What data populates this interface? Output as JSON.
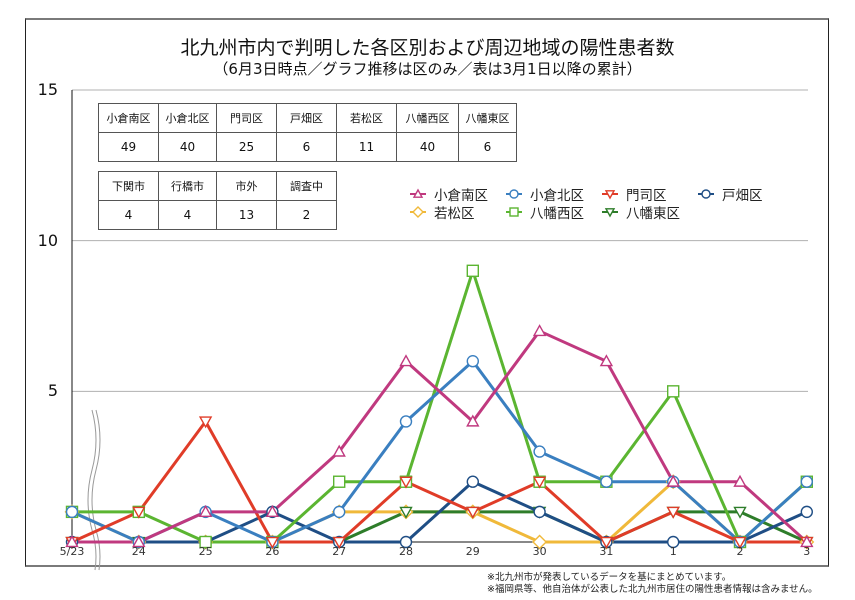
{
  "title": "北九州市内で判明した各区別および周辺地域の陽性患者数",
  "subtitle": "（6月3日時点／グラフ推移は区のみ／表は3月1日以降の累計）",
  "table_wards": {
    "headers": [
      "小倉南区",
      "小倉北区",
      "門司区",
      "戸畑区",
      "若松区",
      "八幡西区",
      "八幡東区"
    ],
    "values": [
      "49",
      "40",
      "25",
      "6",
      "11",
      "40",
      "6"
    ]
  },
  "table_others": {
    "headers": [
      "下関市",
      "行橋市",
      "市外",
      "調査中"
    ],
    "values": [
      "4",
      "4",
      "13",
      "2"
    ]
  },
  "notes": [
    "※北九州市が発表しているデータを基にまとめています。",
    "※福岡県等、他自治体が公表した北九州市居住の陽性患者情報は含みません。"
  ],
  "chart_data": {
    "type": "line",
    "title": "北九州市内で判明した各区別および周辺地域の陽性患者数",
    "subtitle": "（6月3日時点／グラフ推移は区のみ／表は3月1日以降の累計）",
    "xlabel": "",
    "ylabel": "",
    "x": [
      "5/23",
      "24",
      "25",
      "26",
      "27",
      "28",
      "29",
      "30",
      "31",
      "1",
      "2",
      "3"
    ],
    "ylim": [
      0,
      15
    ],
    "yticks": [
      "5",
      "10",
      "15"
    ],
    "grid": true,
    "legend_position": "upper-right-inside",
    "series": [
      {
        "name": "小倉南区",
        "color": "#c0397f",
        "marker": "triangle-up",
        "values": [
          0,
          0,
          1,
          1,
          3,
          6,
          4,
          7,
          6,
          2,
          2,
          0
        ]
      },
      {
        "name": "小倉北区",
        "color": "#3a7fc0",
        "marker": "circle",
        "values": [
          1,
          0,
          1,
          0,
          1,
          4,
          6,
          3,
          2,
          2,
          0,
          2
        ]
      },
      {
        "name": "門司区",
        "color": "#e03c28",
        "marker": "triangle-down",
        "values": [
          0,
          1,
          4,
          0,
          0,
          2,
          1,
          2,
          0,
          1,
          0,
          0
        ]
      },
      {
        "name": "戸畑区",
        "color": "#1f4e85",
        "marker": "circle",
        "values": [
          0,
          0,
          0,
          1,
          0,
          0,
          2,
          1,
          0,
          0,
          0,
          1
        ]
      },
      {
        "name": "若松区",
        "color": "#f0b93a",
        "marker": "diamond",
        "values": [
          1,
          0,
          0,
          0,
          1,
          1,
          1,
          0,
          0,
          2,
          0,
          0
        ]
      },
      {
        "name": "八幡西区",
        "color": "#5bb531",
        "marker": "square",
        "values": [
          1,
          1,
          0,
          0,
          2,
          2,
          9,
          2,
          2,
          5,
          0,
          2
        ]
      },
      {
        "name": "八幡東区",
        "color": "#2e7d2a",
        "marker": "triangle-down",
        "values": [
          0,
          0,
          0,
          0,
          0,
          1,
          1,
          1,
          0,
          1,
          1,
          0
        ]
      }
    ]
  }
}
